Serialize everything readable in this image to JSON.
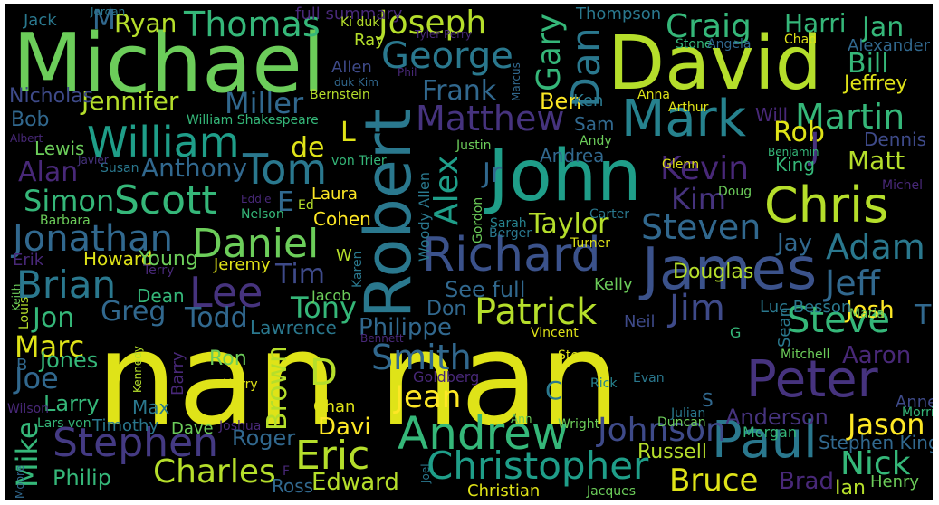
{
  "words": [
    {
      "id": "w0",
      "text": "nan nan",
      "color": "#dfe318"
    },
    {
      "id": "w1",
      "text": "Michael",
      "color": "#6ccd5a"
    },
    {
      "id": "w2",
      "text": "David",
      "color": "#b5de2b"
    },
    {
      "id": "w3",
      "text": "John",
      "color": "#1f9e89"
    },
    {
      "id": "w4",
      "text": "Robert",
      "color": "#2a788e"
    },
    {
      "id": "w5",
      "text": "James",
      "color": "#3b528b"
    },
    {
      "id": "w6",
      "text": "Paul",
      "color": "#2a788e"
    },
    {
      "id": "w7",
      "text": "Peter",
      "color": "#46337e"
    },
    {
      "id": "w8",
      "text": "Mark",
      "color": "#26828e"
    },
    {
      "id": "w9",
      "text": "Chris",
      "color": "#b5de2b"
    },
    {
      "id": "w10",
      "text": "Richard",
      "color": "#3b528b"
    },
    {
      "id": "w11",
      "text": "Andrew",
      "color": "#35b779"
    },
    {
      "id": "w12",
      "text": "Christopher",
      "color": "#1f9e89"
    },
    {
      "id": "w13",
      "text": "Stephen",
      "color": "#443a83"
    },
    {
      "id": "w14",
      "text": "Eric",
      "color": "#b5de2b"
    },
    {
      "id": "w15",
      "text": "William",
      "color": "#1f9e89"
    },
    {
      "id": "w16",
      "text": "Tom",
      "color": "#2a788e"
    },
    {
      "id": "w17",
      "text": "Scott",
      "color": "#35b779"
    },
    {
      "id": "w18",
      "text": "Lee",
      "color": "#46337e"
    },
    {
      "id": "w19",
      "text": "Daniel",
      "color": "#6ccd5a"
    },
    {
      "id": "w20",
      "text": "Brian",
      "color": "#2a788e"
    },
    {
      "id": "w21",
      "text": "Jonathan",
      "color": "#31688e"
    },
    {
      "id": "w22",
      "text": "George",
      "color": "#2a788e"
    },
    {
      "id": "w23",
      "text": "Thomas",
      "color": "#35b779"
    },
    {
      "id": "w24",
      "text": "Joseph",
      "color": "#b5de2b"
    },
    {
      "id": "w25",
      "text": "Matthew",
      "color": "#46337e"
    },
    {
      "id": "w26",
      "text": "Patrick",
      "color": "#b5de2b"
    },
    {
      "id": "w27",
      "text": "Steve",
      "color": "#35b779"
    },
    {
      "id": "w28",
      "text": "Steven",
      "color": "#31688e"
    },
    {
      "id": "w29",
      "text": "Adam",
      "color": "#2a788e"
    },
    {
      "id": "w30",
      "text": "Jeff",
      "color": "#31688e"
    },
    {
      "id": "w31",
      "text": "Jim",
      "color": "#3e4a89"
    },
    {
      "id": "w32",
      "text": "Martin",
      "color": "#35b779"
    },
    {
      "id": "w33",
      "text": "Craig",
      "color": "#35b779"
    },
    {
      "id": "w34",
      "text": "Kevin",
      "color": "#482878"
    },
    {
      "id": "w35",
      "text": "Charles",
      "color": "#b5de2b"
    },
    {
      "id": "w36",
      "text": "Jean",
      "color": "#fde725"
    },
    {
      "id": "w37",
      "text": "Smith",
      "color": "#31688e"
    },
    {
      "id": "w38",
      "text": "Johnson",
      "color": "#3e4a89"
    },
    {
      "id": "w39",
      "text": "Bruce",
      "color": "#dfe318"
    },
    {
      "id": "w40",
      "text": "Nick",
      "color": "#35b779"
    },
    {
      "id": "w41",
      "text": "Jason",
      "color": "#fde725"
    },
    {
      "id": "w42",
      "text": "Frank",
      "color": "#31688e"
    },
    {
      "id": "w43",
      "text": "Miller",
      "color": "#31688e"
    },
    {
      "id": "w44",
      "text": "Anthony",
      "color": "#31688e"
    },
    {
      "id": "w45",
      "text": "Jennifer",
      "color": "#b5de2b"
    },
    {
      "id": "w46",
      "text": "Simon",
      "color": "#35b779"
    },
    {
      "id": "w47",
      "text": "Alan",
      "color": "#482878"
    },
    {
      "id": "w48",
      "text": "Taylor",
      "color": "#b5de2b"
    },
    {
      "id": "w49",
      "text": "Tony",
      "color": "#35b779"
    },
    {
      "id": "w50",
      "text": "Todd",
      "color": "#31688e"
    },
    {
      "id": "w51",
      "text": "Greg",
      "color": "#31688e"
    },
    {
      "id": "w52",
      "text": "Tim",
      "color": "#3e4a89"
    },
    {
      "id": "w53",
      "text": "Jon",
      "color": "#35b779"
    },
    {
      "id": "w54",
      "text": "Marc",
      "color": "#dfe318"
    },
    {
      "id": "w55",
      "text": "Joe",
      "color": "#31688e"
    },
    {
      "id": "w56",
      "text": "Jones",
      "color": "#35b779"
    },
    {
      "id": "w57",
      "text": "Larry",
      "color": "#35b779"
    },
    {
      "id": "w58",
      "text": "Philip",
      "color": "#35b779"
    },
    {
      "id": "w59",
      "text": "Edward",
      "color": "#b5de2b"
    },
    {
      "id": "w60",
      "text": "Roger",
      "color": "#31688e"
    },
    {
      "id": "w61",
      "text": "Davi",
      "color": "#fde725"
    },
    {
      "id": "w62",
      "text": "Mike",
      "color": "#35b779"
    },
    {
      "id": "w63",
      "text": "Brown",
      "color": "#b5de2b"
    },
    {
      "id": "w64",
      "text": "Alex",
      "color": "#1f9e89"
    },
    {
      "id": "w65",
      "text": "Gary",
      "color": "#35b779"
    },
    {
      "id": "w66",
      "text": "Dan",
      "color": "#2a788e"
    },
    {
      "id": "w67",
      "text": "Ryan",
      "color": "#b5de2b"
    },
    {
      "id": "w68",
      "text": "M",
      "color": "#31688e"
    },
    {
      "id": "w69",
      "text": "full summary",
      "color": "#482878"
    },
    {
      "id": "w70",
      "text": "Harri",
      "color": "#35b779"
    },
    {
      "id": "w71",
      "text": "Jan",
      "color": "#35b779"
    },
    {
      "id": "w72",
      "text": "Bill",
      "color": "#35b779"
    },
    {
      "id": "w73",
      "text": "Jeffrey",
      "color": "#dfe318"
    },
    {
      "id": "w74",
      "text": "Thompson",
      "color": "#2a788e"
    },
    {
      "id": "w75",
      "text": "Ben",
      "color": "#fde725"
    },
    {
      "id": "w76",
      "text": "Rob",
      "color": "#dfe318"
    },
    {
      "id": "w77",
      "text": "Matt",
      "color": "#b5de2b"
    },
    {
      "id": "w78",
      "text": "J",
      "color": "#46337e"
    },
    {
      "id": "w79",
      "text": "Kim",
      "color": "#46337e"
    },
    {
      "id": "w80",
      "text": "Jr",
      "color": "#31688e"
    },
    {
      "id": "w81",
      "text": "de",
      "color": "#dfe318"
    },
    {
      "id": "w82",
      "text": "L",
      "color": "#dfe318"
    },
    {
      "id": "w83",
      "text": "E",
      "color": "#31688e"
    },
    {
      "id": "w84",
      "text": "D",
      "color": "#b5de2b"
    },
    {
      "id": "w85",
      "text": "C",
      "color": "#2a788e"
    },
    {
      "id": "w86",
      "text": "Jay",
      "color": "#31688e"
    },
    {
      "id": "w87",
      "text": "Douglas",
      "color": "#b5de2b"
    },
    {
      "id": "w88",
      "text": "Josh",
      "color": "#fde725"
    },
    {
      "id": "w89",
      "text": "T",
      "color": "#31688e"
    },
    {
      "id": "w90",
      "text": "Aaron",
      "color": "#482878"
    },
    {
      "id": "w91",
      "text": "Philippe",
      "color": "#31688e"
    },
    {
      "id": "w92",
      "text": "See full",
      "color": "#31688e"
    },
    {
      "id": "w93",
      "text": "Kelly",
      "color": "#6ccd5a"
    },
    {
      "id": "w94",
      "text": "Howard",
      "color": "#dfe318"
    },
    {
      "id": "w95",
      "text": "Young",
      "color": "#6ccd5a"
    },
    {
      "id": "w96",
      "text": "Jeremy",
      "color": "#dfe318"
    },
    {
      "id": "w97",
      "text": "Lawrence",
      "color": "#2a788e"
    },
    {
      "id": "w98",
      "text": "Anderson",
      "color": "#46337e"
    },
    {
      "id": "w99",
      "text": "Russell",
      "color": "#b5de2b"
    },
    {
      "id": "w100",
      "text": "Brad",
      "color": "#482878"
    },
    {
      "id": "w101",
      "text": "Ian",
      "color": "#b5de2b"
    },
    {
      "id": "w102",
      "text": "Henry",
      "color": "#6ccd5a"
    },
    {
      "id": "w103",
      "text": "Anne",
      "color": "#3e4a89"
    },
    {
      "id": "w104",
      "text": "Stephen King",
      "color": "#31688e"
    },
    {
      "id": "w105",
      "text": "Luc Besson",
      "color": "#2a788e"
    },
    {
      "id": "w106",
      "text": "Cohen",
      "color": "#fde725"
    },
    {
      "id": "w107",
      "text": "Laura",
      "color": "#fde725"
    },
    {
      "id": "w108",
      "text": "Woody Allen",
      "color": "#2a788e"
    },
    {
      "id": "w109",
      "text": "Ross",
      "color": "#31688e"
    },
    {
      "id": "w110",
      "text": "Max",
      "color": "#2a788e"
    },
    {
      "id": "w111",
      "text": "Dave",
      "color": "#6ccd5a"
    },
    {
      "id": "w112",
      "text": "Christian",
      "color": "#dfe318"
    },
    {
      "id": "w113",
      "text": "Barry",
      "color": "#482878"
    },
    {
      "id": "w114",
      "text": "Sean",
      "color": "#2a788e"
    },
    {
      "id": "w115",
      "text": "Neil",
      "color": "#3e4a89"
    },
    {
      "id": "w116",
      "text": "Don",
      "color": "#31688e"
    },
    {
      "id": "w117",
      "text": "Ron",
      "color": "#6ccd5a"
    },
    {
      "id": "w118",
      "text": "Chan",
      "color": "#dfe318"
    },
    {
      "id": "w119",
      "text": "Timothy",
      "color": "#2a788e"
    },
    {
      "id": "w120",
      "text": "Lewis",
      "color": "#6ccd5a"
    },
    {
      "id": "w121",
      "text": "Bob",
      "color": "#31688e"
    },
    {
      "id": "w122",
      "text": "Nicholas",
      "color": "#3e4a89"
    },
    {
      "id": "w123",
      "text": "Jack",
      "color": "#2a788e"
    },
    {
      "id": "w124",
      "text": "Sam",
      "color": "#31688e"
    },
    {
      "id": "w125",
      "text": "Ken",
      "color": "#2a788e"
    },
    {
      "id": "w126",
      "text": "Andrea",
      "color": "#31688e"
    },
    {
      "id": "w127",
      "text": "Will",
      "color": "#482878"
    },
    {
      "id": "w128",
      "text": "Dennis",
      "color": "#3e4a89"
    },
    {
      "id": "w129",
      "text": "King",
      "color": "#35b779"
    },
    {
      "id": "w130",
      "text": "Ray",
      "color": "#b5de2b"
    },
    {
      "id": "w131",
      "text": "Allen",
      "color": "#3e4a89"
    },
    {
      "id": "w132",
      "text": "Dean",
      "color": "#35b779"
    },
    {
      "id": "w133",
      "text": "Jacob",
      "color": "#6ccd5a"
    },
    {
      "id": "w134",
      "text": "Mitchell",
      "color": "#6ccd5a"
    },
    {
      "id": "w135",
      "text": "Morgan",
      "color": "#35b779"
    },
    {
      "id": "w136",
      "text": "Duncan",
      "color": "#6ccd5a"
    },
    {
      "id": "w137",
      "text": "Julian",
      "color": "#2a788e"
    },
    {
      "id": "w138",
      "text": "Wright",
      "color": "#6ccd5a"
    },
    {
      "id": "w139",
      "text": "Ann",
      "color": "#6ccd5a"
    },
    {
      "id": "w140",
      "text": "Rick",
      "color": "#26828e"
    },
    {
      "id": "w141",
      "text": "Evan",
      "color": "#2a788e"
    },
    {
      "id": "w142",
      "text": "Stern",
      "color": "#dfe318"
    },
    {
      "id": "w143",
      "text": "Vincent",
      "color": "#dfe318"
    },
    {
      "id": "w144",
      "text": "Goldberg",
      "color": "#482878"
    },
    {
      "id": "w145",
      "text": "Harry",
      "color": "#dfe318"
    },
    {
      "id": "w146",
      "text": "Kennedy",
      "color": "#b5de2b"
    },
    {
      "id": "w147",
      "text": "Jacques",
      "color": "#6ccd5a"
    },
    {
      "id": "w148",
      "text": "Joel",
      "color": "#2a788e"
    },
    {
      "id": "w149",
      "text": "Turner",
      "color": "#dfe318"
    },
    {
      "id": "w150",
      "text": "Carter",
      "color": "#2a788e"
    },
    {
      "id": "w151",
      "text": "Sarah",
      "color": "#26828e"
    },
    {
      "id": "w152",
      "text": "Berger",
      "color": "#2a788e"
    },
    {
      "id": "w153",
      "text": "Gordon",
      "color": "#6ccd5a"
    },
    {
      "id": "w154",
      "text": "Karen",
      "color": "#2a788e"
    },
    {
      "id": "w155",
      "text": "Nelson",
      "color": "#35b779"
    },
    {
      "id": "w156",
      "text": "Eddie",
      "color": "#482878"
    },
    {
      "id": "w157",
      "text": "Ed",
      "color": "#b5de2b"
    },
    {
      "id": "w158",
      "text": "Barbara",
      "color": "#6ccd5a"
    },
    {
      "id": "w159",
      "text": "Susan",
      "color": "#2a788e"
    },
    {
      "id": "w160",
      "text": "Javier",
      "color": "#46337e"
    },
    {
      "id": "w161",
      "text": "Albert",
      "color": "#482878"
    },
    {
      "id": "w162",
      "text": "von Trier",
      "color": "#35b779"
    },
    {
      "id": "w163",
      "text": "Justin",
      "color": "#6ccd5a"
    },
    {
      "id": "w164",
      "text": "Andy",
      "color": "#6ccd5a"
    },
    {
      "id": "w165",
      "text": "Glenn",
      "color": "#dfe318"
    },
    {
      "id": "w166",
      "text": "Doug",
      "color": "#6ccd5a"
    },
    {
      "id": "w167",
      "text": "Michel",
      "color": "#482878"
    },
    {
      "id": "w168",
      "text": "Benjamin",
      "color": "#35b779"
    },
    {
      "id": "w169",
      "text": "Anna",
      "color": "#dfe318"
    },
    {
      "id": "w170",
      "text": "Arthur",
      "color": "#dfe318"
    },
    {
      "id": "w171",
      "text": "Marcus",
      "color": "#31688e"
    },
    {
      "id": "w172",
      "text": "Phil",
      "color": "#482878"
    },
    {
      "id": "w173",
      "text": "duk Kim",
      "color": "#31688e"
    },
    {
      "id": "w174",
      "text": "Bernstein",
      "color": "#b5de2b"
    },
    {
      "id": "w175",
      "text": "William Shakespeare",
      "color": "#35b779"
    },
    {
      "id": "w176",
      "text": "Jordan",
      "color": "#2a788e"
    },
    {
      "id": "w177",
      "text": "Ki duk",
      "color": "#b5de2b"
    },
    {
      "id": "w178",
      "text": "Tyler Perry",
      "color": "#482878"
    },
    {
      "id": "w179",
      "text": "Stone",
      "color": "#35b779"
    },
    {
      "id": "w180",
      "text": "Angela",
      "color": "#31688e"
    },
    {
      "id": "w181",
      "text": "Chad",
      "color": "#dfe318"
    },
    {
      "id": "w182",
      "text": "Alexander",
      "color": "#31688e"
    },
    {
      "id": "w183",
      "text": "Erik",
      "color": "#482878"
    },
    {
      "id": "w184",
      "text": "Terry",
      "color": "#482878"
    },
    {
      "id": "w185",
      "text": "Keith",
      "color": "#6ccd5a"
    },
    {
      "id": "w186",
      "text": "Louis",
      "color": "#b5de2b"
    },
    {
      "id": "w187",
      "text": "B",
      "color": "#31688e"
    },
    {
      "id": "w188",
      "text": "Wilson",
      "color": "#482878"
    },
    {
      "id": "w189",
      "text": "Lars von",
      "color": "#35b779"
    },
    {
      "id": "w190",
      "text": "Joshua",
      "color": "#482878"
    },
    {
      "id": "w191",
      "text": "Moore",
      "color": "#31688e"
    },
    {
      "id": "w192",
      "text": "Morris",
      "color": "#35b779"
    },
    {
      "id": "w193",
      "text": "Maria",
      "color": "#6ccd5a"
    },
    {
      "id": "w194",
      "text": "Bennett",
      "color": "#482878"
    },
    {
      "id": "w195",
      "text": "W",
      "color": "#b5de2b"
    },
    {
      "id": "w196",
      "text": "G",
      "color": "#35b779"
    },
    {
      "id": "w197",
      "text": "S",
      "color": "#31688e"
    },
    {
      "id": "w198",
      "text": "F",
      "color": "#482878"
    }
  ]
}
